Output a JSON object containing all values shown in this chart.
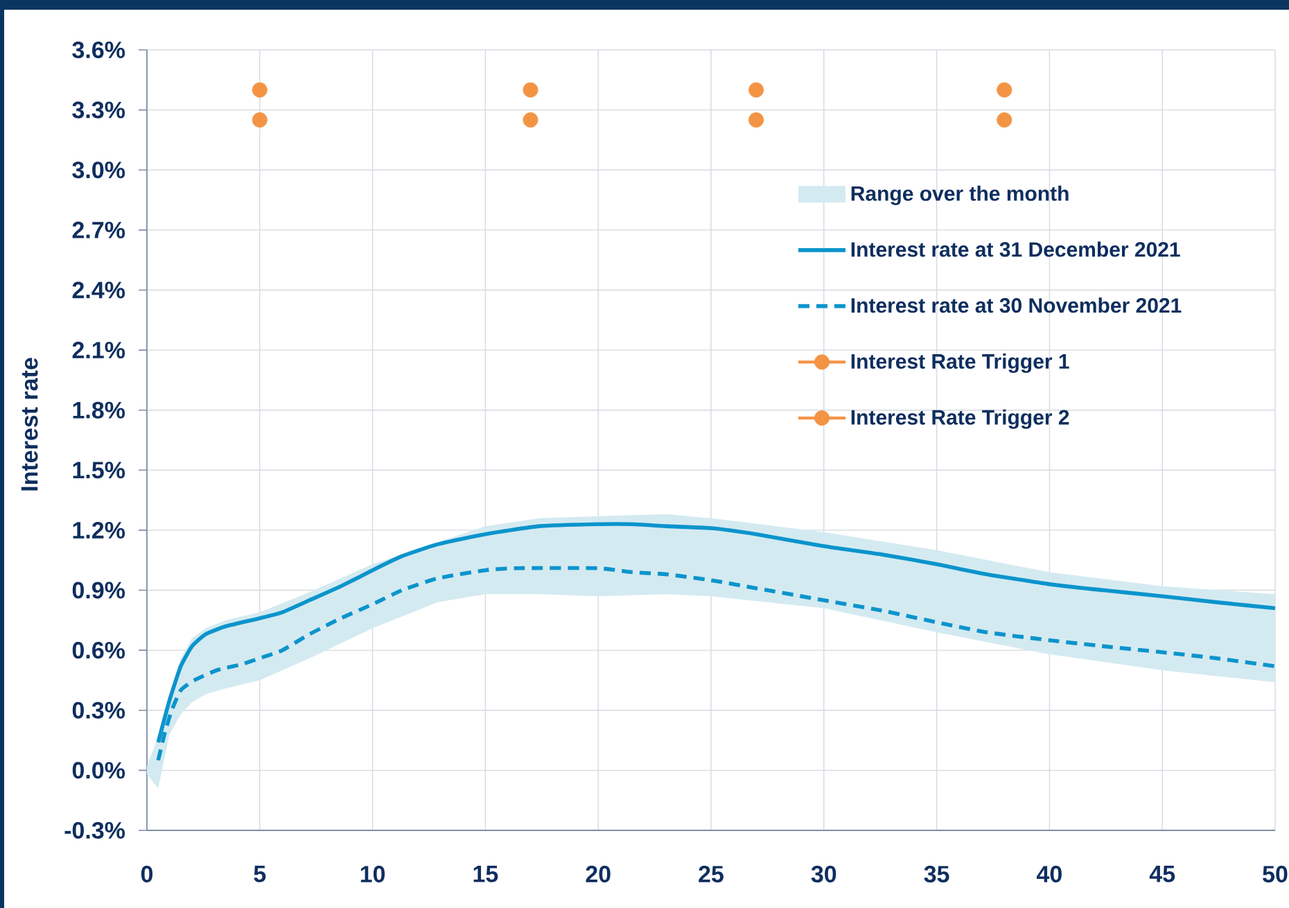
{
  "chart_data": {
    "type": "line",
    "ylabel": "Interest rate",
    "xlim": [
      0,
      50
    ],
    "ylim": [
      -0.3,
      3.6
    ],
    "xticks": [
      0,
      5,
      10,
      15,
      20,
      25,
      30,
      35,
      40,
      45,
      50
    ],
    "yticks": [
      {
        "value": -0.3,
        "label": "-0.3%"
      },
      {
        "value": 0,
        "label": "0.0%"
      },
      {
        "value": 0.3,
        "label": "0.3%"
      },
      {
        "value": 0.6,
        "label": "0.6%"
      },
      {
        "value": 0.9,
        "label": "0.9%"
      },
      {
        "value": 1.2,
        "label": "1.2%"
      },
      {
        "value": 1.5,
        "label": "1.5%"
      },
      {
        "value": 1.8,
        "label": "1.8%"
      },
      {
        "value": 2.1,
        "label": "2.1%"
      },
      {
        "value": 2.4,
        "label": "2.4%"
      },
      {
        "value": 2.7,
        "label": "2.7%"
      },
      {
        "value": 3.0,
        "label": "3.0%"
      },
      {
        "value": 3.3,
        "label": "3.3%"
      },
      {
        "value": 3.6,
        "label": "3.6%"
      }
    ],
    "grid": true,
    "legend": "top right",
    "series": [
      {
        "name": "Range over the month",
        "color": "#d4eaf1",
        "x": [
          0,
          0.5,
          1,
          1.5,
          2,
          2.6,
          3.5,
          5,
          7.2,
          10,
          12.9,
          15,
          17.4,
          20,
          23,
          25,
          30,
          35,
          40,
          45,
          50
        ],
        "values": [
          null,
          null,
          null,
          null,
          null,
          null,
          null,
          null,
          null,
          null,
          null,
          null,
          null,
          null,
          null,
          null,
          null,
          null,
          null,
          null,
          null
        ],
        "upper": [
          0.02,
          0.17,
          0.38,
          0.56,
          0.66,
          0.71,
          0.75,
          0.79,
          0.89,
          1.03,
          1.14,
          1.22,
          1.26,
          1.27,
          1.28,
          1.26,
          1.19,
          1.1,
          0.99,
          0.92,
          0.88
        ],
        "lower": [
          -0.02,
          -0.09,
          0.18,
          0.28,
          0.34,
          0.38,
          0.41,
          0.45,
          0.56,
          0.71,
          0.84,
          0.88,
          0.88,
          0.87,
          0.88,
          0.87,
          0.81,
          0.69,
          0.58,
          0.5,
          0.44
        ]
      },
      {
        "name": "Interest rate at 31 December 2021",
        "color": "#0b94cc",
        "line_style": "solid",
        "x": [
          0.5,
          1,
          1.5,
          2,
          2.6,
          3.5,
          5,
          6,
          7.2,
          8.6,
          10,
          11.3,
          12.9,
          15,
          17.4,
          20,
          21.5,
          23,
          25,
          27,
          30,
          32.5,
          35,
          37.2,
          40,
          42.4,
          45,
          47.4,
          50
        ],
        "values": [
          0.14,
          0.35,
          0.52,
          0.62,
          0.68,
          0.72,
          0.76,
          0.79,
          0.85,
          0.92,
          1.0,
          1.07,
          1.13,
          1.18,
          1.22,
          1.23,
          1.23,
          1.22,
          1.21,
          1.18,
          1.12,
          1.08,
          1.03,
          0.98,
          0.93,
          0.9,
          0.87,
          0.84,
          0.81
        ]
      },
      {
        "name": "Interest rate at 30 November 2021",
        "color": "#0b94cc",
        "line_style": "dashed",
        "x": [
          0.5,
          0.8,
          1.1,
          1.5,
          2.1,
          3.1,
          4.2,
          5,
          6,
          7.2,
          8.6,
          10,
          11.3,
          12.9,
          15,
          16.4,
          20,
          21.5,
          23,
          25,
          27,
          30,
          32.5,
          35,
          37.2,
          40,
          42.4,
          45,
          47.4,
          50
        ],
        "values": [
          0.05,
          0.19,
          0.3,
          0.4,
          0.45,
          0.5,
          0.53,
          0.56,
          0.6,
          0.68,
          0.76,
          0.83,
          0.9,
          0.96,
          1.0,
          1.01,
          1.01,
          0.99,
          0.98,
          0.95,
          0.91,
          0.85,
          0.8,
          0.74,
          0.69,
          0.65,
          0.62,
          0.59,
          0.56,
          0.52
        ]
      },
      {
        "name": "Interest Rate Trigger 1",
        "type": "scatter",
        "color": "#f39445",
        "marker": "circle",
        "x": [
          5,
          17,
          27,
          38
        ],
        "values": [
          3.4,
          3.4,
          3.4,
          3.4
        ]
      },
      {
        "name": "Interest Rate Trigger 2",
        "type": "scatter",
        "color": "#f39445",
        "marker": "circle",
        "x": [
          5,
          17,
          27,
          38
        ],
        "values": [
          3.25,
          3.25,
          3.25,
          3.25
        ]
      }
    ]
  }
}
